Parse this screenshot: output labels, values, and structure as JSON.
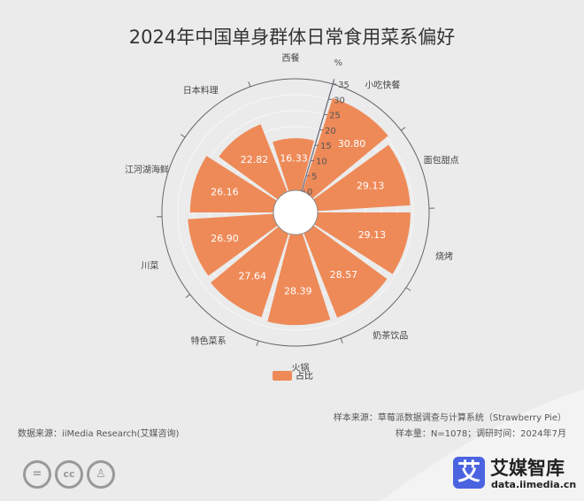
{
  "chart_data": {
    "type": "polar-bar",
    "title": "2024年中国单身群体日常食用菜系偏好",
    "categories": [
      "西餐",
      "小吃快餐",
      "面包甜点",
      "烧烤",
      "奶茶饮品",
      "火锅",
      "特色菜系",
      "川菜",
      "江河湖海鲜",
      "日本料理"
    ],
    "values": [
      16.33,
      30.8,
      29.13,
      29.13,
      28.57,
      28.39,
      27.64,
      26.9,
      26.16,
      22.82
    ],
    "radial_unit": "%",
    "radial_ticks": [
      0,
      5,
      10,
      15,
      20,
      25,
      30,
      35
    ],
    "rlim": [
      0,
      35
    ],
    "legend": {
      "label": "占比",
      "position": "bottom"
    },
    "bar_color": "#ee8a58"
  },
  "footer": {
    "source": "数据来源：iiMedia Research(艾媒咨询)",
    "sample_source": "样本来源：草莓派数据调查与计算系统（Strawberry Pie）",
    "sample_info": "样本量：N=1078；调研时间：2024年7月",
    "brand": "艾媒智库",
    "brand_url": "data.iimedia.cn",
    "logo_char": "艾",
    "license_icons": [
      "cc-nd-icon",
      "cc-icon",
      "cc-by-icon"
    ]
  }
}
